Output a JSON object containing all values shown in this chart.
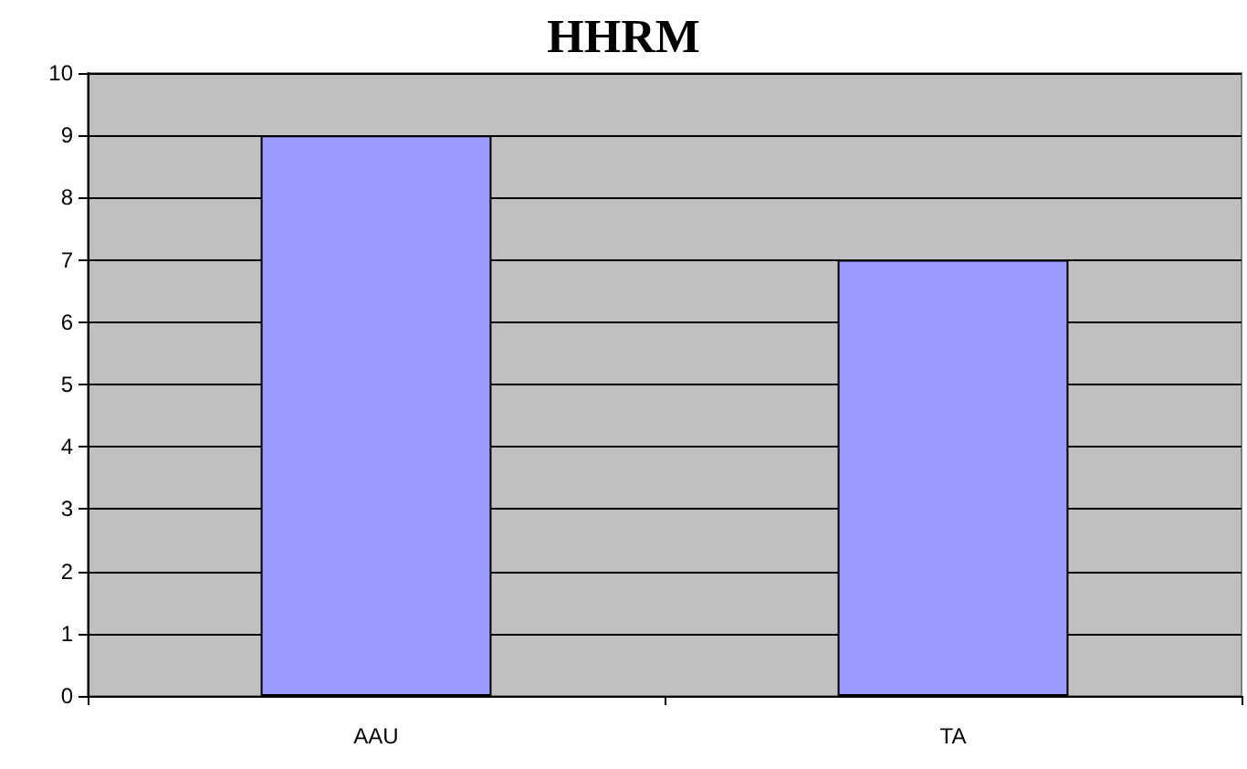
{
  "chart_data": {
    "type": "bar",
    "title": "HHRM",
    "categories": [
      "AAU",
      "TA"
    ],
    "values": [
      9,
      7
    ],
    "color": "#9999ff",
    "ylim": [
      0,
      10
    ],
    "yticks": [
      0,
      1,
      2,
      3,
      4,
      5,
      6,
      7,
      8,
      9,
      10
    ],
    "grid": "y"
  }
}
